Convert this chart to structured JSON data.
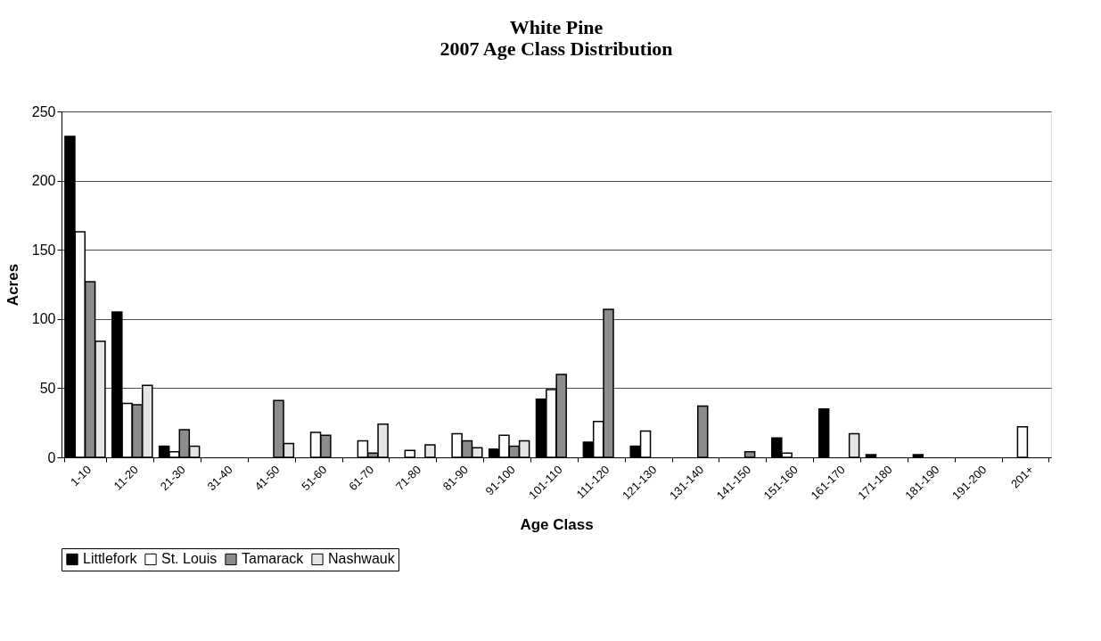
{
  "chart_data": {
    "type": "bar",
    "title": "White Pine\n2007 Age Class Distribution",
    "xlabel": "Age Class",
    "ylabel": "Acres",
    "categories": [
      "1-10",
      "11-20",
      "21-30",
      "31-40",
      "41-50",
      "51-60",
      "61-70",
      "71-80",
      "81-90",
      "91-100",
      "101-110",
      "111-120",
      "121-130",
      "131-140",
      "141-150",
      "151-160",
      "161-170",
      "171-180",
      "181-190",
      "191-200",
      "201+"
    ],
    "series": [
      {
        "name": "Littlefork",
        "color": "#000000",
        "values": [
          232,
          105,
          8,
          null,
          null,
          null,
          null,
          null,
          null,
          6,
          42,
          11,
          8,
          null,
          null,
          14,
          35,
          2,
          2,
          null,
          null
        ]
      },
      {
        "name": "St. Louis",
        "color": "#ffffff",
        "values": [
          163,
          39,
          4,
          null,
          null,
          18,
          12,
          5,
          17,
          16,
          49,
          26,
          19,
          null,
          null,
          3,
          null,
          null,
          null,
          null,
          22
        ]
      },
      {
        "name": "Tamarack",
        "color": "#8c8c8c",
        "values": [
          127,
          38,
          20,
          null,
          41,
          16,
          3,
          null,
          12,
          8,
          60,
          107,
          null,
          37,
          4,
          null,
          null,
          null,
          null,
          null,
          null
        ]
      },
      {
        "name": "Nashwauk",
        "color": "#e4e4e4",
        "values": [
          84,
          52,
          8,
          null,
          10,
          null,
          24,
          9,
          7,
          12,
          null,
          null,
          null,
          null,
          null,
          null,
          17,
          null,
          null,
          null,
          null
        ]
      }
    ],
    "ylim": [
      0,
      250
    ],
    "yticks": [
      0,
      50,
      100,
      150,
      200,
      250
    ],
    "grid": "y",
    "legend": "bottom"
  }
}
